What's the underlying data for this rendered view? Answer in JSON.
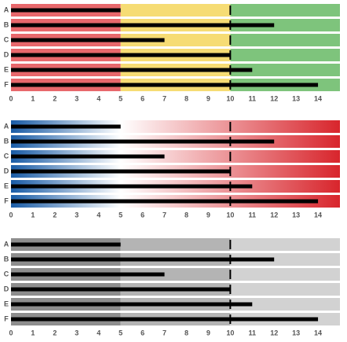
{
  "chart_data": [
    {
      "type": "bullet",
      "categories": [
        "A",
        "B",
        "C",
        "D",
        "E",
        "F"
      ],
      "values": [
        5,
        12,
        7,
        10,
        11,
        14
      ],
      "targets": [
        10,
        10,
        10,
        10,
        10,
        10
      ],
      "ranges": [
        5,
        10,
        15
      ],
      "range_colors": [
        "#e8686c",
        "#f6dc74",
        "#7ec47c"
      ],
      "bar_color": "#000000",
      "xlim": [
        0,
        15
      ],
      "xticks": [
        0,
        1,
        2,
        3,
        4,
        5,
        6,
        7,
        8,
        9,
        10,
        11,
        12,
        13,
        14
      ]
    },
    {
      "type": "bullet",
      "categories": [
        "A",
        "B",
        "C",
        "D",
        "E",
        "F"
      ],
      "values": [
        5,
        12,
        7,
        10,
        11,
        14
      ],
      "targets": [
        10,
        10,
        10,
        10,
        10,
        10
      ],
      "ranges": [
        5,
        15
      ],
      "gradient": [
        "#1a5ca6",
        "#ffffff",
        "#d8252c"
      ],
      "bar_color": "#000000",
      "xlim": [
        0,
        15
      ],
      "xticks": [
        0,
        1,
        2,
        3,
        4,
        5,
        6,
        7,
        8,
        9,
        10,
        11,
        12,
        13,
        14
      ]
    },
    {
      "type": "bullet",
      "categories": [
        "A",
        "B",
        "C",
        "D",
        "E",
        "F"
      ],
      "values": [
        5,
        12,
        7,
        10,
        11,
        14
      ],
      "targets": [
        10,
        10,
        10,
        10,
        10,
        10
      ],
      "ranges": [
        5,
        10,
        15
      ],
      "range_colors": [
        "#8e8e8e",
        "#b4b4b4",
        "#d2d2d2"
      ],
      "bar_color": "#000000",
      "xlim": [
        0,
        15
      ],
      "xticks": [
        0,
        1,
        2,
        3,
        4,
        5,
        6,
        7,
        8,
        9,
        10,
        11,
        12,
        13,
        14
      ]
    }
  ]
}
